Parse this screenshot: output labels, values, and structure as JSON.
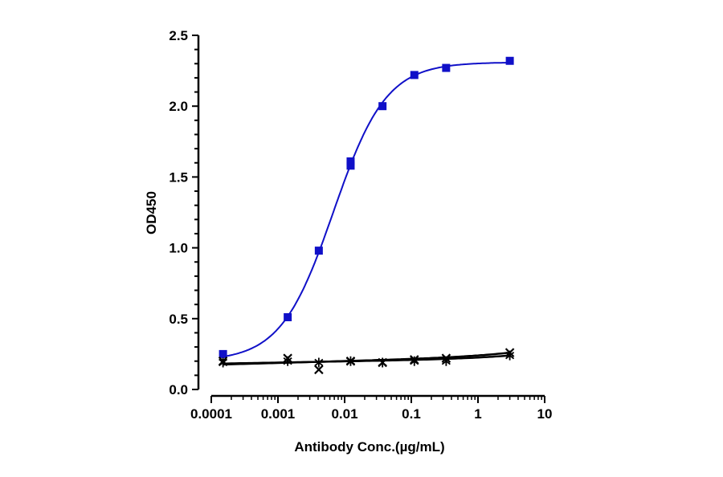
{
  "chart_data": {
    "type": "scatter",
    "title": "",
    "xlabel": "Antibody Conc.(µg/mL)",
    "ylabel": "OD450",
    "x_scale": "log",
    "xlim": [
      0.0001,
      10
    ],
    "ylim": [
      0.0,
      2.5
    ],
    "x_ticks": [
      "0.0001",
      "0.001",
      "0.01",
      "0.1",
      "1",
      "10"
    ],
    "y_ticks": [
      "0.0",
      "0.5",
      "1.0",
      "1.5",
      "2.0",
      "2.5"
    ],
    "grid": false,
    "legend": "none",
    "series": [
      {
        "marker": "square",
        "color": "#1010c8",
        "x": [
          0.00015,
          0.0014,
          0.0041,
          0.0123,
          0.0123,
          0.037,
          0.111,
          0.333,
          3.0
        ],
        "y": [
          0.25,
          0.51,
          0.98,
          1.58,
          1.61,
          2.0,
          2.22,
          2.27,
          2.32
        ],
        "fit": "4PL",
        "fit_params": {
          "bottom": 0.2,
          "top": 2.31,
          "ec50": 0.0068,
          "hill": 1.1
        }
      },
      {
        "marker": "x",
        "color": "#000000",
        "x": [
          0.00015,
          0.0014,
          0.0041,
          0.0123,
          0.037,
          0.111,
          0.333,
          3.0
        ],
        "y": [
          0.2,
          0.22,
          0.14,
          0.2,
          0.19,
          0.21,
          0.22,
          0.26
        ],
        "fit": "line"
      },
      {
        "marker": "asterisk",
        "color": "#000000",
        "x": [
          0.00015,
          0.0014,
          0.0041,
          0.0123,
          0.037,
          0.111,
          0.333,
          3.0
        ],
        "y": [
          0.19,
          0.2,
          0.19,
          0.2,
          0.19,
          0.2,
          0.2,
          0.24
        ],
        "fit": "line"
      }
    ]
  }
}
